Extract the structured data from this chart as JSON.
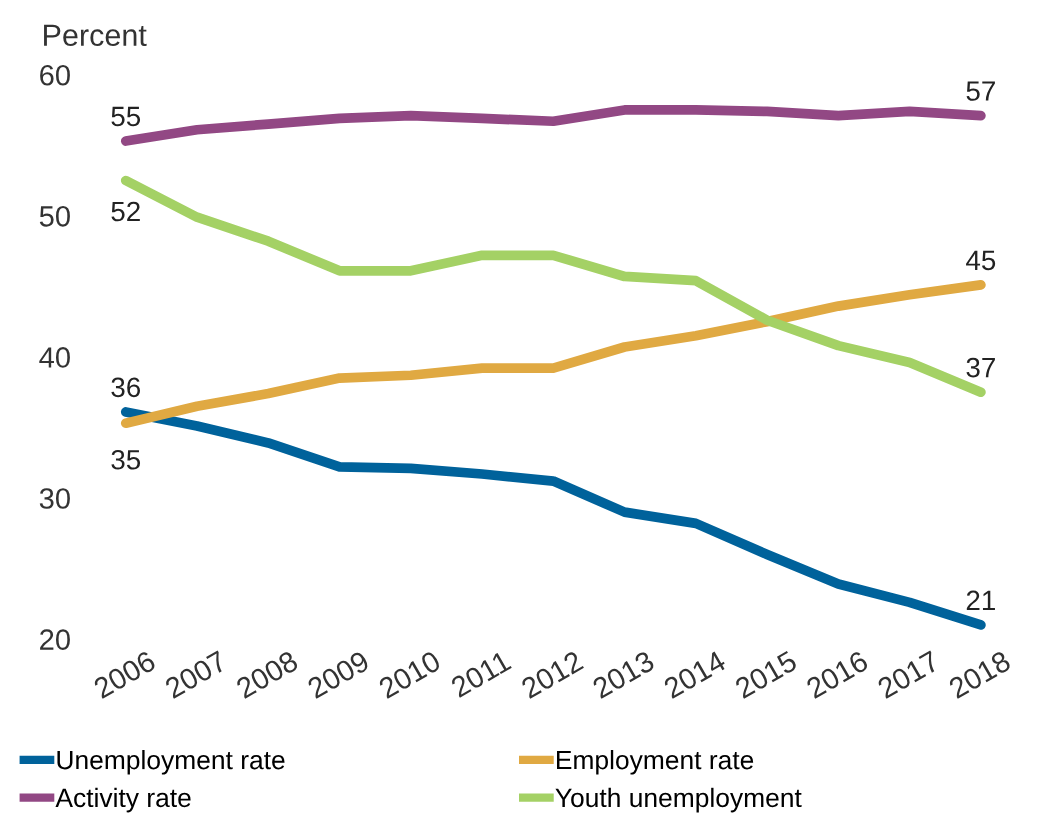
{
  "chart_data": {
    "type": "line",
    "ylabel": "Percent",
    "categories": [
      "2006",
      "2007",
      "2008",
      "2009",
      "2010",
      "2011",
      "2012",
      "2013",
      "2014",
      "2015",
      "2016",
      "2017",
      "2018"
    ],
    "series": [
      {
        "name": "Unemployment rate",
        "color": "#00629b",
        "values": [
          36.1,
          35.1,
          33.9,
          32.2,
          32.1,
          31.7,
          31.2,
          29.0,
          28.2,
          26.0,
          23.9,
          22.6,
          21.0
        ],
        "value_labels": [
          "36",
          null,
          null,
          null,
          null,
          null,
          null,
          null,
          null,
          null,
          null,
          null,
          "21"
        ]
      },
      {
        "name": "Employment rate",
        "color": "#e0a942",
        "values": [
          35.3,
          36.5,
          37.4,
          38.5,
          38.7,
          39.2,
          39.2,
          40.7,
          41.5,
          42.5,
          43.6,
          44.4,
          45.1
        ],
        "value_labels": [
          "35",
          null,
          null,
          null,
          null,
          null,
          null,
          null,
          null,
          null,
          null,
          null,
          "45"
        ]
      },
      {
        "name": "Activity rate",
        "color": "#924884",
        "values": [
          55.3,
          56.1,
          56.5,
          56.9,
          57.1,
          56.9,
          56.7,
          57.5,
          57.5,
          57.4,
          57.1,
          57.4,
          57.1
        ],
        "value_labels": [
          "55",
          null,
          null,
          null,
          null,
          null,
          null,
          null,
          null,
          null,
          null,
          null,
          "57"
        ]
      },
      {
        "name": "Youth unemployment",
        "color": "#a4d165",
        "values": [
          52.5,
          49.9,
          48.2,
          46.1,
          46.1,
          47.2,
          47.2,
          45.7,
          45.4,
          42.6,
          40.8,
          39.6,
          37.5
        ],
        "value_labels": [
          "52",
          null,
          null,
          null,
          null,
          null,
          null,
          null,
          null,
          null,
          null,
          null,
          "37"
        ]
      }
    ],
    "ylim": [
      20,
      60
    ],
    "yticks": [
      20,
      30,
      40,
      50,
      60
    ],
    "grid": false,
    "legend": "bottom",
    "marker": "none",
    "line_style": "solid"
  }
}
